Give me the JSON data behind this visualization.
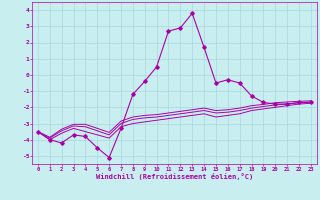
{
  "xlabel": "Windchill (Refroidissement éolien,°C)",
  "background_color": "#c8eef0",
  "grid_color": "#a8d8e0",
  "line_color": "#aa00aa",
  "x_values": [
    0,
    1,
    2,
    3,
    4,
    5,
    6,
    7,
    8,
    9,
    10,
    11,
    12,
    13,
    14,
    15,
    16,
    17,
    18,
    19,
    20,
    21,
    22,
    23
  ],
  "series1": [
    -3.5,
    -4.0,
    -4.2,
    -3.7,
    -3.8,
    -4.5,
    -5.1,
    -3.3,
    -1.2,
    -0.4,
    0.5,
    2.7,
    2.9,
    3.8,
    1.7,
    -0.5,
    -0.3,
    -0.5,
    -1.3,
    -1.7,
    -1.8,
    -1.8,
    -1.7,
    -1.7
  ],
  "series2": [
    -3.5,
    -4.0,
    -3.6,
    -3.3,
    -3.5,
    -3.7,
    -3.9,
    -3.2,
    -3.0,
    -2.9,
    -2.8,
    -2.7,
    -2.6,
    -2.5,
    -2.4,
    -2.6,
    -2.5,
    -2.4,
    -2.2,
    -2.1,
    -2.0,
    -1.9,
    -1.8,
    -1.75
  ],
  "series3": [
    -3.5,
    -3.9,
    -3.45,
    -3.15,
    -3.2,
    -3.45,
    -3.7,
    -3.0,
    -2.75,
    -2.65,
    -2.6,
    -2.5,
    -2.4,
    -2.3,
    -2.2,
    -2.35,
    -2.3,
    -2.2,
    -2.05,
    -1.95,
    -1.85,
    -1.8,
    -1.72,
    -1.68
  ],
  "series4": [
    -3.5,
    -3.85,
    -3.35,
    -3.05,
    -3.05,
    -3.3,
    -3.55,
    -2.85,
    -2.6,
    -2.5,
    -2.45,
    -2.35,
    -2.25,
    -2.15,
    -2.05,
    -2.2,
    -2.15,
    -2.05,
    -1.9,
    -1.82,
    -1.72,
    -1.67,
    -1.63,
    -1.6
  ],
  "ylim": [
    -5.5,
    4.5
  ],
  "xlim": [
    -0.5,
    23.5
  ],
  "yticks": [
    -5,
    -4,
    -3,
    -2,
    -1,
    0,
    1,
    2,
    3,
    4
  ],
  "xticks": [
    0,
    1,
    2,
    3,
    4,
    5,
    6,
    7,
    8,
    9,
    10,
    11,
    12,
    13,
    14,
    15,
    16,
    17,
    18,
    19,
    20,
    21,
    22,
    23
  ]
}
